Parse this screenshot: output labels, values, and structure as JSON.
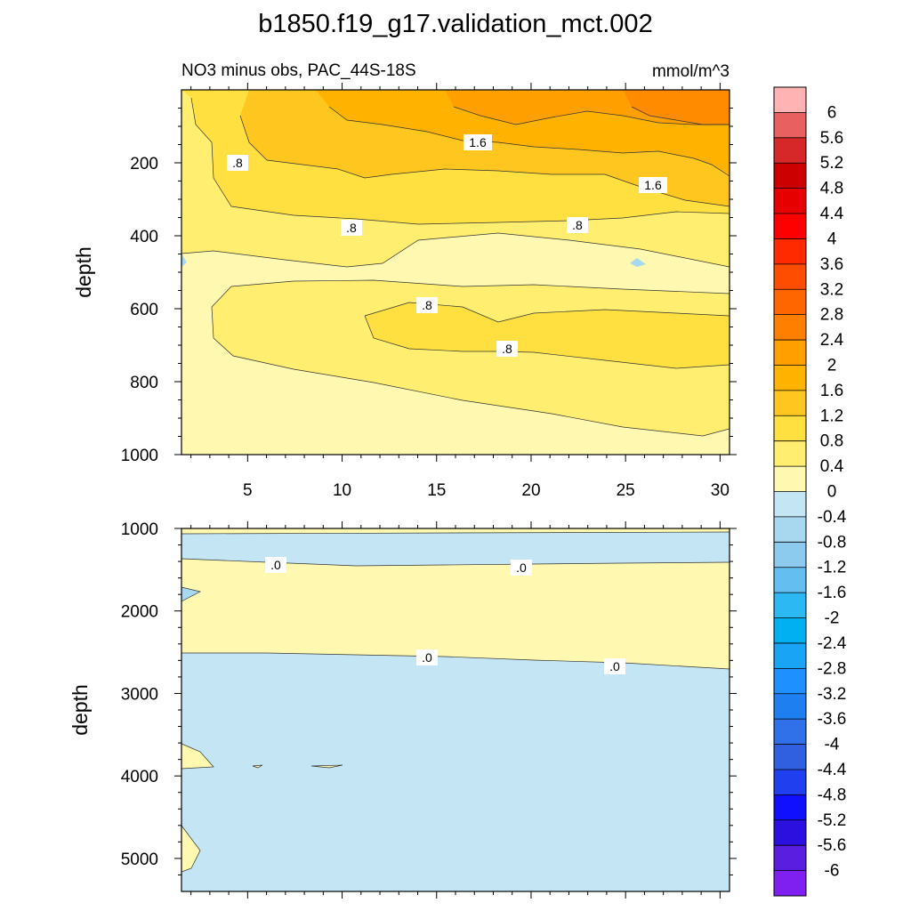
{
  "title": "b1850.f19_g17.validation_mct.002",
  "subtitle_left": "NO3 minus obs, PAC_44S-18S",
  "subtitle_right": "mmol/m^3",
  "chart_data": [
    {
      "type": "heatmap",
      "panel": "upper",
      "ylabel": "depth",
      "xlabel": "",
      "xlim": [
        1.5,
        30.5
      ],
      "ylim": [
        1000,
        0
      ],
      "x_ticks": [
        "5",
        "10",
        "15",
        "20",
        "25",
        "30"
      ],
      "y_ticks": [
        "200",
        "400",
        "600",
        "800",
        "1000"
      ],
      "contour_labels": [
        ".8",
        "1.6",
        ".8",
        "1.6",
        ".8",
        ".8",
        ".8",
        ".8"
      ],
      "approx_bands": [
        {
          "depth_range": [
            0,
            60
          ],
          "value_range": [
            1.6,
            2.8
          ]
        },
        {
          "depth_range": [
            60,
            300
          ],
          "value_range": [
            1.2,
            2.0
          ]
        },
        {
          "depth_range": [
            300,
            430
          ],
          "value_range": [
            0.8,
            1.2
          ]
        },
        {
          "depth_range": [
            430,
            550
          ],
          "value_range": [
            0,
            0.4
          ]
        },
        {
          "depth_range": [
            600,
            780
          ],
          "value_range": [
            0.8,
            1.2
          ]
        },
        {
          "depth_range": [
            780,
            1000
          ],
          "value_range": [
            0,
            0.8
          ]
        }
      ]
    },
    {
      "type": "heatmap",
      "panel": "lower",
      "ylabel": "depth",
      "xlabel": "",
      "xlim": [
        1.5,
        30.5
      ],
      "ylim": [
        5400,
        1000
      ],
      "y_ticks": [
        "1000",
        "2000",
        "3000",
        "4000",
        "5000"
      ],
      "contour_labels": [
        ".0",
        ".0",
        ".0",
        ".0"
      ],
      "approx_bands": [
        {
          "depth_range": [
            1000,
            1400
          ],
          "value_range": [
            -0.4,
            0
          ]
        },
        {
          "depth_range": [
            1400,
            2600
          ],
          "value_range": [
            0,
            0.4
          ]
        },
        {
          "depth_range": [
            2600,
            5400
          ],
          "value_range": [
            -0.4,
            0
          ]
        }
      ]
    }
  ],
  "colorbar": {
    "labels": [
      "6",
      "5.6",
      "5.2",
      "4.8",
      "4.4",
      "4",
      "3.6",
      "3.2",
      "2.8",
      "2.4",
      "2",
      "1.6",
      "1.2",
      "0.8",
      "0.4",
      "0",
      "-0.4",
      "-0.8",
      "-1.2",
      "-1.6",
      "-2",
      "-2.4",
      "-2.8",
      "-3.2",
      "-3.6",
      "-4",
      "-4.4",
      "-4.8",
      "-5.2",
      "-5.6",
      "-6"
    ],
    "colors": [
      "#ffb3b3",
      "#e86060",
      "#d62828",
      "#cc0000",
      "#e60000",
      "#ff0000",
      "#ff2a00",
      "#ff4d00",
      "#ff6600",
      "#ff8000",
      "#ffa000",
      "#ffb300",
      "#ffc620",
      "#ffe040",
      "#ffee70",
      "#fff8b0",
      "#c4e6f4",
      "#a8d8f0",
      "#8ccaee",
      "#64bff0",
      "#2cb8f2",
      "#00b0f0",
      "#1aa4f5",
      "#1e90ff",
      "#1e80f0",
      "#3070e8",
      "#3060e0",
      "#2040f0",
      "#1010ff",
      "#2c10e0",
      "#5a1ee0",
      "#8020f0"
    ]
  }
}
